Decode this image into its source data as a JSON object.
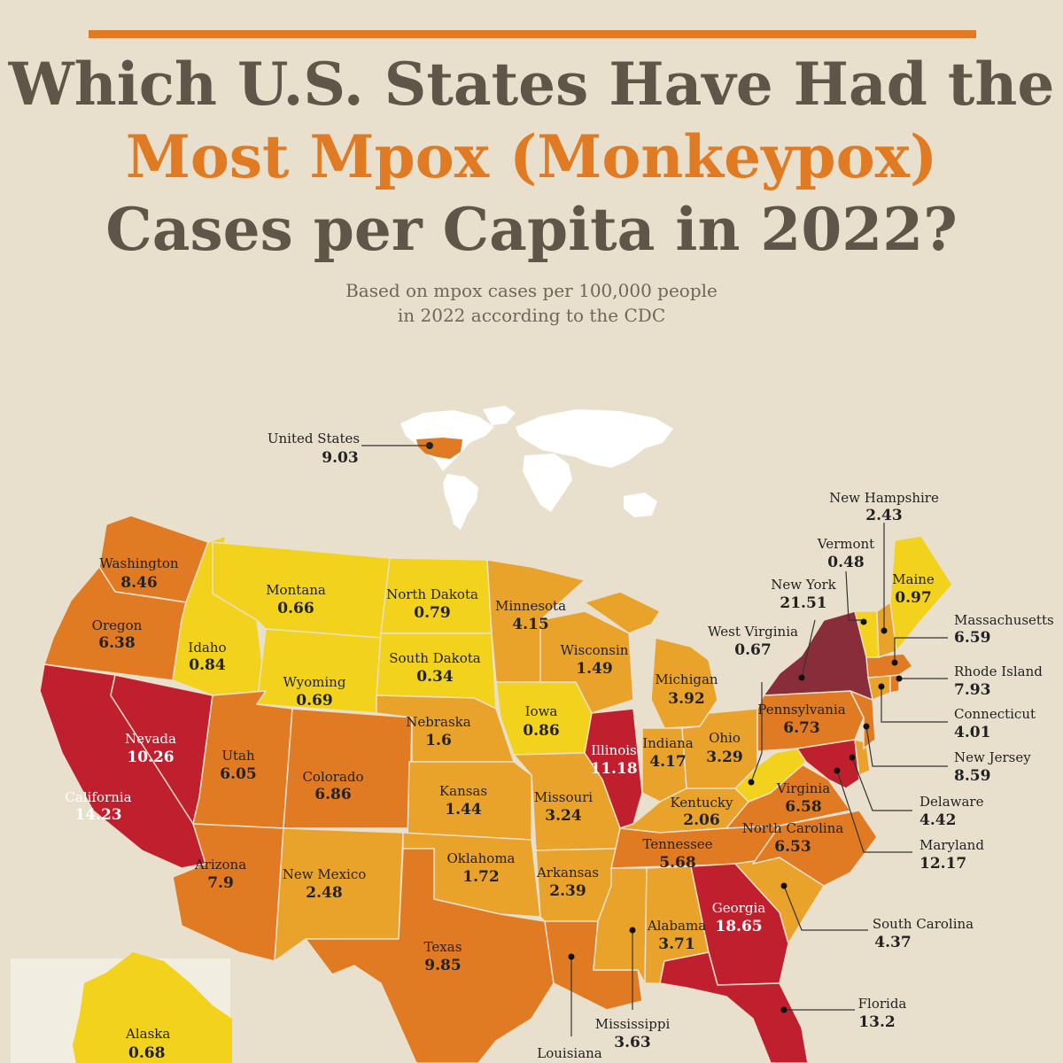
{
  "title": {
    "line1": "Which U.S. States Have Had the",
    "line2": "Most Mpox (Monkeypox)",
    "line3": "Cases per Capita in 2022?"
  },
  "subtitle": {
    "line1": "Based on mpox cases per 100,000 people",
    "line2": "in 2022 according to the CDC"
  },
  "colors": {
    "background": "#e8e0cc",
    "accent": "#e07a23",
    "title": "#5f5548",
    "yellow": "#f2d21d",
    "light_orange": "#e9a22a",
    "orange": "#e07a23",
    "red": "#c0202e",
    "dark_red": "#8a2d3b",
    "land": "#ffffff"
  },
  "us_total": {
    "name": "United States",
    "value": "9.03"
  },
  "states": {
    "washington": {
      "name": "Washington",
      "value": "8.46",
      "color": "#e07a23"
    },
    "oregon": {
      "name": "Oregon",
      "value": "6.38",
      "color": "#e07a23"
    },
    "california": {
      "name": "California",
      "value": "14.23",
      "color": "#c0202e"
    },
    "nevada": {
      "name": "Nevada",
      "value": "10.26",
      "color": "#c0202e"
    },
    "idaho": {
      "name": "Idaho",
      "value": "0.84",
      "color": "#f2d21d"
    },
    "montana": {
      "name": "Montana",
      "value": "0.66",
      "color": "#f2d21d"
    },
    "wyoming": {
      "name": "Wyoming",
      "value": "0.69",
      "color": "#f2d21d"
    },
    "utah": {
      "name": "Utah",
      "value": "6.05",
      "color": "#e07a23"
    },
    "arizona": {
      "name": "Arizona",
      "value": "7.9",
      "color": "#e07a23"
    },
    "colorado": {
      "name": "Colorado",
      "value": "6.86",
      "color": "#e07a23"
    },
    "new_mexico": {
      "name": "New Mexico",
      "value": "2.48",
      "color": "#e9a22a"
    },
    "north_dakota": {
      "name": "North Dakota",
      "value": "0.79",
      "color": "#f2d21d"
    },
    "south_dakota": {
      "name": "South Dakota",
      "value": "0.34",
      "color": "#f2d21d"
    },
    "nebraska": {
      "name": "Nebraska",
      "value": "1.6",
      "color": "#e9a22a"
    },
    "kansas": {
      "name": "Kansas",
      "value": "1.44",
      "color": "#e9a22a"
    },
    "oklahoma": {
      "name": "Oklahoma",
      "value": "1.72",
      "color": "#e9a22a"
    },
    "texas": {
      "name": "Texas",
      "value": "9.85",
      "color": "#e07a23"
    },
    "minnesota": {
      "name": "Minnesota",
      "value": "4.15",
      "color": "#e9a22a"
    },
    "iowa": {
      "name": "Iowa",
      "value": "0.86",
      "color": "#f2d21d"
    },
    "missouri": {
      "name": "Missouri",
      "value": "3.24",
      "color": "#e9a22a"
    },
    "arkansas": {
      "name": "Arkansas",
      "value": "2.39",
      "color": "#e9a22a"
    },
    "louisiana": {
      "name": "Louisiana",
      "value": "",
      "color": "#e07a23"
    },
    "wisconsin": {
      "name": "Wisconsin",
      "value": "1.49",
      "color": "#e9a22a"
    },
    "illinois": {
      "name": "Illinois",
      "value": "11.18",
      "color": "#c0202e"
    },
    "michigan": {
      "name": "Michigan",
      "value": "3.92",
      "color": "#e9a22a"
    },
    "indiana": {
      "name": "Indiana",
      "value": "4.17",
      "color": "#e9a22a"
    },
    "ohio": {
      "name": "Ohio",
      "value": "3.29",
      "color": "#e9a22a"
    },
    "kentucky": {
      "name": "Kentucky",
      "value": "2.06",
      "color": "#e9a22a"
    },
    "tennessee": {
      "name": "Tennessee",
      "value": "5.68",
      "color": "#e07a23"
    },
    "mississippi": {
      "name": "Mississippi",
      "value": "3.63",
      "color": "#e9a22a"
    },
    "alabama": {
      "name": "Alabama",
      "value": "3.71",
      "color": "#e9a22a"
    },
    "georgia": {
      "name": "Georgia",
      "value": "18.65",
      "color": "#c0202e"
    },
    "florida": {
      "name": "Florida",
      "value": "13.2",
      "color": "#c0202e"
    },
    "south_carolina": {
      "name": "South Carolina",
      "value": "4.37",
      "color": "#e9a22a"
    },
    "north_carolina": {
      "name": "North Carolina",
      "value": "6.53",
      "color": "#e07a23"
    },
    "virginia": {
      "name": "Virginia",
      "value": "6.58",
      "color": "#e07a23"
    },
    "west_virginia": {
      "name": "West Virginia",
      "value": "0.67",
      "color": "#f2d21d"
    },
    "pennsylvania": {
      "name": "Pennsylvania",
      "value": "6.73",
      "color": "#e07a23"
    },
    "new_york": {
      "name": "New York",
      "value": "21.51",
      "color": "#8a2d3b"
    },
    "vermont": {
      "name": "Vermont",
      "value": "0.48",
      "color": "#f2d21d"
    },
    "new_hampshire": {
      "name": "New Hampshire",
      "value": "2.43",
      "color": "#e9a22a"
    },
    "maine": {
      "name": "Maine",
      "value": "0.97",
      "color": "#f2d21d"
    },
    "massachusetts": {
      "name": "Massachusetts",
      "value": "6.59",
      "color": "#e07a23"
    },
    "rhode_island": {
      "name": "Rhode Island",
      "value": "7.93",
      "color": "#e07a23"
    },
    "connecticut": {
      "name": "Connecticut",
      "value": "4.01",
      "color": "#e9a22a"
    },
    "new_jersey": {
      "name": "New Jersey",
      "value": "8.59",
      "color": "#e07a23"
    },
    "delaware": {
      "name": "Delaware",
      "value": "4.42",
      "color": "#e9a22a"
    },
    "maryland": {
      "name": "Maryland",
      "value": "12.17",
      "color": "#c0202e"
    },
    "alaska": {
      "name": "Alaska",
      "value": "0.68",
      "color": "#f2d21d"
    }
  }
}
